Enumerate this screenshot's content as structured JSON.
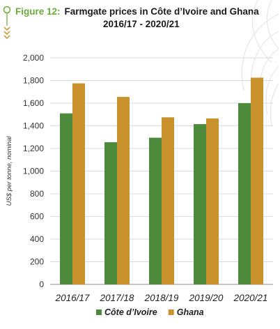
{
  "figure": {
    "label": "Figure 12:",
    "title_line1": "Farmgate prices in Côte d’Ivoire and Ghana",
    "title_line2": "2016/17 - 2020/21"
  },
  "colors": {
    "cote_divoire": "#4e8a3c",
    "ghana": "#c9922d",
    "accent": "#6aab3c",
    "grid": "#d9d9d9",
    "axis_text": "#333333"
  },
  "chart_data": {
    "type": "bar",
    "ylabel": "US$ per tonne, nominal",
    "xlabel": "",
    "ylim": [
      0,
      2000
    ],
    "yticks": [
      0,
      200,
      400,
      600,
      800,
      1000,
      1200,
      1400,
      1600,
      1800,
      2000
    ],
    "ytick_labels": [
      "0",
      "200",
      "400",
      "600",
      "800",
      "1,000",
      "1,200",
      "1,400",
      "1,600",
      "1,800",
      "2,000"
    ],
    "categories": [
      "2016/17",
      "2017/18",
      "2018/19",
      "2019/20",
      "2020/21"
    ],
    "series": [
      {
        "name": "Côte d’Ivoire",
        "values": [
          1510,
          1255,
          1295,
          1415,
          1600
        ]
      },
      {
        "name": "Ghana",
        "values": [
          1775,
          1655,
          1475,
          1465,
          1825
        ]
      }
    ],
    "grid": true,
    "legend_position": "bottom-center"
  }
}
